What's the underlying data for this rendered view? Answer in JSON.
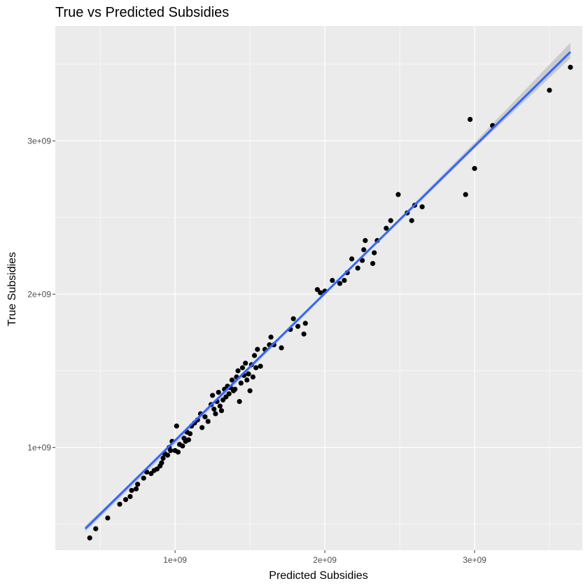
{
  "chart_data": {
    "type": "scatter",
    "title": "True vs Predicted Subsidies",
    "xlabel": "Predicted Subsidies",
    "ylabel": "True Subsidies",
    "xlim": [
      200000000.0,
      3720000000.0
    ],
    "ylim": [
      330000000.0,
      3750000000.0
    ],
    "x_ticks": [
      1000000000.0,
      2000000000.0,
      3000000000.0
    ],
    "y_ticks": [
      1000000000.0,
      2000000000.0,
      3000000000.0
    ],
    "x_tick_labels": [
      "1e+09",
      "2e+09",
      "3e+09"
    ],
    "y_tick_labels": [
      "1e+09",
      "2e+09",
      "3e+09"
    ],
    "grid": true,
    "colors": {
      "panel_background": "#ebebeb",
      "grid_major": "#ffffff",
      "points": "#000000",
      "fit_line": "#3366ff",
      "confidence_band": "#bdbdbd"
    },
    "fit_line": {
      "x": [
        400000000.0,
        3640000000.0
      ],
      "y": [
        470000000.0,
        3580000000.0
      ]
    },
    "confidence_band": {
      "x": [
        400000000.0,
        1000000000.0,
        2000000000.0,
        3000000000.0,
        3640000000.0
      ],
      "lower": [
        450000000.0,
        1020000000.0,
        1995000000.0,
        2950000000.0,
        3540000000.0
      ],
      "upper": [
        490000000.0,
        1040000000.0,
        2005000000.0,
        2990000000.0,
        3640000000.0
      ]
    },
    "points": [
      {
        "x": 430000000.0,
        "y": 410000000.0
      },
      {
        "x": 470000000.0,
        "y": 470000000.0
      },
      {
        "x": 550000000.0,
        "y": 540000000.0
      },
      {
        "x": 630000000.0,
        "y": 630000000.0
      },
      {
        "x": 670000000.0,
        "y": 660000000.0
      },
      {
        "x": 700000000.0,
        "y": 680000000.0
      },
      {
        "x": 710000000.0,
        "y": 720000000.0
      },
      {
        "x": 740000000.0,
        "y": 730000000.0
      },
      {
        "x": 750000000.0,
        "y": 760000000.0
      },
      {
        "x": 790000000.0,
        "y": 800000000.0
      },
      {
        "x": 810000000.0,
        "y": 840000000.0
      },
      {
        "x": 840000000.0,
        "y": 830000000.0
      },
      {
        "x": 860000000.0,
        "y": 850000000.0
      },
      {
        "x": 880000000.0,
        "y": 860000000.0
      },
      {
        "x": 900000000.0,
        "y": 880000000.0
      },
      {
        "x": 910000000.0,
        "y": 900000000.0
      },
      {
        "x": 920000000.0,
        "y": 930000000.0
      },
      {
        "x": 930000000.0,
        "y": 960000000.0
      },
      {
        "x": 950000000.0,
        "y": 950000000.0
      },
      {
        "x": 960000000.0,
        "y": 1000000000.0
      },
      {
        "x": 970000000.0,
        "y": 980000000.0
      },
      {
        "x": 980000000.0,
        "y": 1040000000.0
      },
      {
        "x": 1000000000.0,
        "y": 980000000.0
      },
      {
        "x": 1010000000.0,
        "y": 1140000000.0
      },
      {
        "x": 1020000000.0,
        "y": 970000000.0
      },
      {
        "x": 1030000000.0,
        "y": 1020000000.0
      },
      {
        "x": 1050000000.0,
        "y": 1010000000.0
      },
      {
        "x": 1060000000.0,
        "y": 1060000000.0
      },
      {
        "x": 1070000000.0,
        "y": 1040000000.0
      },
      {
        "x": 1080000000.0,
        "y": 1100000000.0
      },
      {
        "x": 1090000000.0,
        "y": 1050000000.0
      },
      {
        "x": 1100000000.0,
        "y": 1090000000.0
      },
      {
        "x": 1110000000.0,
        "y": 1140000000.0
      },
      {
        "x": 1130000000.0,
        "y": 1160000000.0
      },
      {
        "x": 1150000000.0,
        "y": 1180000000.0
      },
      {
        "x": 1170000000.0,
        "y": 1220000000.0
      },
      {
        "x": 1180000000.0,
        "y": 1130000000.0
      },
      {
        "x": 1200000000.0,
        "y": 1200000000.0
      },
      {
        "x": 1220000000.0,
        "y": 1170000000.0
      },
      {
        "x": 1240000000.0,
        "y": 1280000000.0
      },
      {
        "x": 1250000000.0,
        "y": 1340000000.0
      },
      {
        "x": 1260000000.0,
        "y": 1250000000.0
      },
      {
        "x": 1270000000.0,
        "y": 1220000000.0
      },
      {
        "x": 1280000000.0,
        "y": 1300000000.0
      },
      {
        "x": 1290000000.0,
        "y": 1360000000.0
      },
      {
        "x": 1300000000.0,
        "y": 1270000000.0
      },
      {
        "x": 1310000000.0,
        "y": 1240000000.0
      },
      {
        "x": 1320000000.0,
        "y": 1310000000.0
      },
      {
        "x": 1330000000.0,
        "y": 1380000000.0
      },
      {
        "x": 1340000000.0,
        "y": 1330000000.0
      },
      {
        "x": 1350000000.0,
        "y": 1400000000.0
      },
      {
        "x": 1360000000.0,
        "y": 1350000000.0
      },
      {
        "x": 1370000000.0,
        "y": 1390000000.0
      },
      {
        "x": 1380000000.0,
        "y": 1440000000.0
      },
      {
        "x": 1390000000.0,
        "y": 1370000000.0
      },
      {
        "x": 1400000000.0,
        "y": 1380000000.0
      },
      {
        "x": 1410000000.0,
        "y": 1460000000.0
      },
      {
        "x": 1420000000.0,
        "y": 1500000000.0
      },
      {
        "x": 1430000000.0,
        "y": 1300000000.0
      },
      {
        "x": 1440000000.0,
        "y": 1420000000.0
      },
      {
        "x": 1450000000.0,
        "y": 1520000000.0
      },
      {
        "x": 1460000000.0,
        "y": 1470000000.0
      },
      {
        "x": 1470000000.0,
        "y": 1550000000.0
      },
      {
        "x": 1480000000.0,
        "y": 1440000000.0
      },
      {
        "x": 1490000000.0,
        "y": 1480000000.0
      },
      {
        "x": 1500000000.0,
        "y": 1370000000.0
      },
      {
        "x": 1510000000.0,
        "y": 1540000000.0
      },
      {
        "x": 1520000000.0,
        "y": 1460000000.0
      },
      {
        "x": 1530000000.0,
        "y": 1600000000.0
      },
      {
        "x": 1540000000.0,
        "y": 1520000000.0
      },
      {
        "x": 1550000000.0,
        "y": 1640000000.0
      },
      {
        "x": 1570000000.0,
        "y": 1530000000.0
      },
      {
        "x": 1600000000.0,
        "y": 1640000000.0
      },
      {
        "x": 1630000000.0,
        "y": 1670000000.0
      },
      {
        "x": 1640000000.0,
        "y": 1720000000.0
      },
      {
        "x": 1660000000.0,
        "y": 1670000000.0
      },
      {
        "x": 1710000000.0,
        "y": 1650000000.0
      },
      {
        "x": 1770000000.0,
        "y": 1770000000.0
      },
      {
        "x": 1790000000.0,
        "y": 1840000000.0
      },
      {
        "x": 1820000000.0,
        "y": 1790000000.0
      },
      {
        "x": 1860000000.0,
        "y": 1740000000.0
      },
      {
        "x": 1870000000.0,
        "y": 1810000000.0
      },
      {
        "x": 1950000000.0,
        "y": 2030000000.0
      },
      {
        "x": 1970000000.0,
        "y": 2010000000.0
      },
      {
        "x": 2000000000.0,
        "y": 2020000000.0
      },
      {
        "x": 2050000000.0,
        "y": 2090000000.0
      },
      {
        "x": 2100000000.0,
        "y": 2070000000.0
      },
      {
        "x": 2130000000.0,
        "y": 2090000000.0
      },
      {
        "x": 2150000000.0,
        "y": 2140000000.0
      },
      {
        "x": 2180000000.0,
        "y": 2230000000.0
      },
      {
        "x": 2220000000.0,
        "y": 2170000000.0
      },
      {
        "x": 2250000000.0,
        "y": 2220000000.0
      },
      {
        "x": 2260000000.0,
        "y": 2290000000.0
      },
      {
        "x": 2270000000.0,
        "y": 2350000000.0
      },
      {
        "x": 2320000000.0,
        "y": 2200000000.0
      },
      {
        "x": 2330000000.0,
        "y": 2270000000.0
      },
      {
        "x": 2350000000.0,
        "y": 2350000000.0
      },
      {
        "x": 2410000000.0,
        "y": 2430000000.0
      },
      {
        "x": 2440000000.0,
        "y": 2480000000.0
      },
      {
        "x": 2490000000.0,
        "y": 2650000000.0
      },
      {
        "x": 2550000000.0,
        "y": 2530000000.0
      },
      {
        "x": 2580000000.0,
        "y": 2480000000.0
      },
      {
        "x": 2600000000.0,
        "y": 2580000000.0
      },
      {
        "x": 2650000000.0,
        "y": 2570000000.0
      },
      {
        "x": 2940000000.0,
        "y": 2650000000.0
      },
      {
        "x": 2970000000.0,
        "y": 3140000000.0
      },
      {
        "x": 3000000000.0,
        "y": 2820000000.0
      },
      {
        "x": 3120000000.0,
        "y": 3100000000.0
      },
      {
        "x": 3500000000.0,
        "y": 3330000000.0
      },
      {
        "x": 3640000000.0,
        "y": 3480000000.0
      }
    ]
  }
}
